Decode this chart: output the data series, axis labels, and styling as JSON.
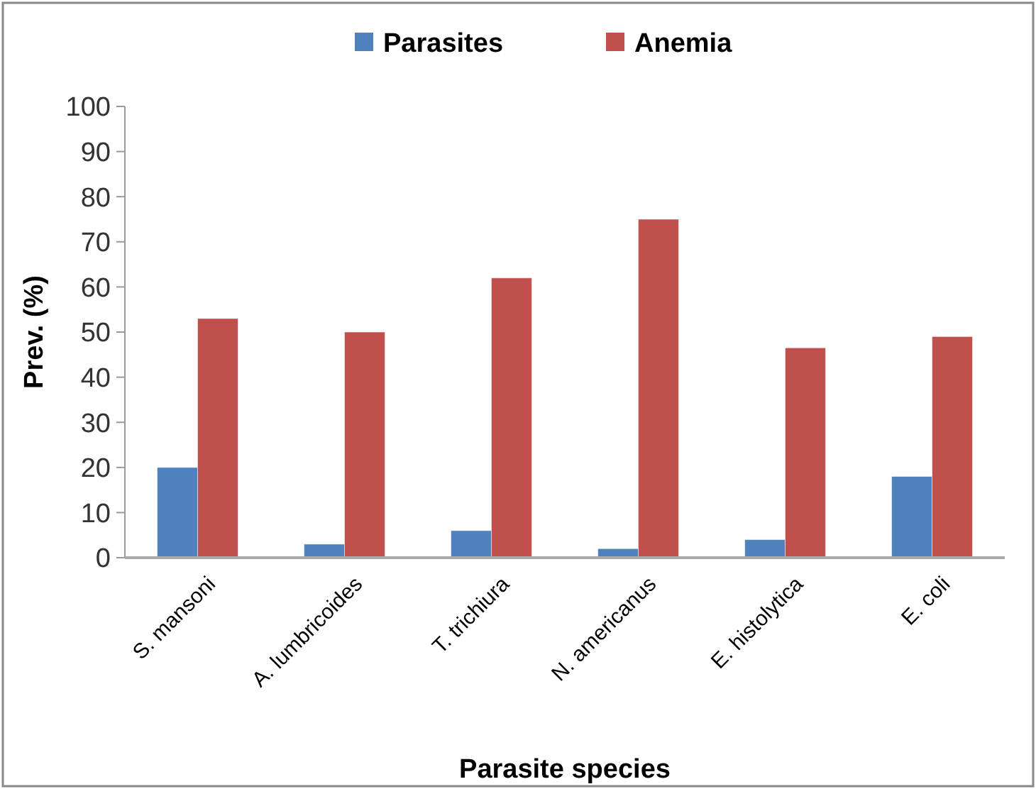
{
  "chart_data": {
    "type": "bar",
    "xlabel": "Parasite species",
    "ylabel": "Prev. (%)",
    "categories": [
      "S. mansoni",
      "A. lumbricoides",
      "T. trichiura",
      "N. americanus",
      "E. histolytica",
      "E. coli"
    ],
    "series": [
      {
        "name": "Parasites",
        "color": "#4f81bd",
        "values": [
          20,
          3,
          6,
          2,
          4,
          18
        ]
      },
      {
        "name": "Anemia",
        "color": "#c0504d",
        "values": [
          53,
          50,
          62,
          75,
          46.5,
          49
        ]
      }
    ],
    "ylim": [
      0,
      100
    ],
    "yticks": [
      0,
      10,
      20,
      30,
      40,
      50,
      60,
      70,
      80,
      90,
      100
    ],
    "grid": false,
    "legend": "top"
  }
}
